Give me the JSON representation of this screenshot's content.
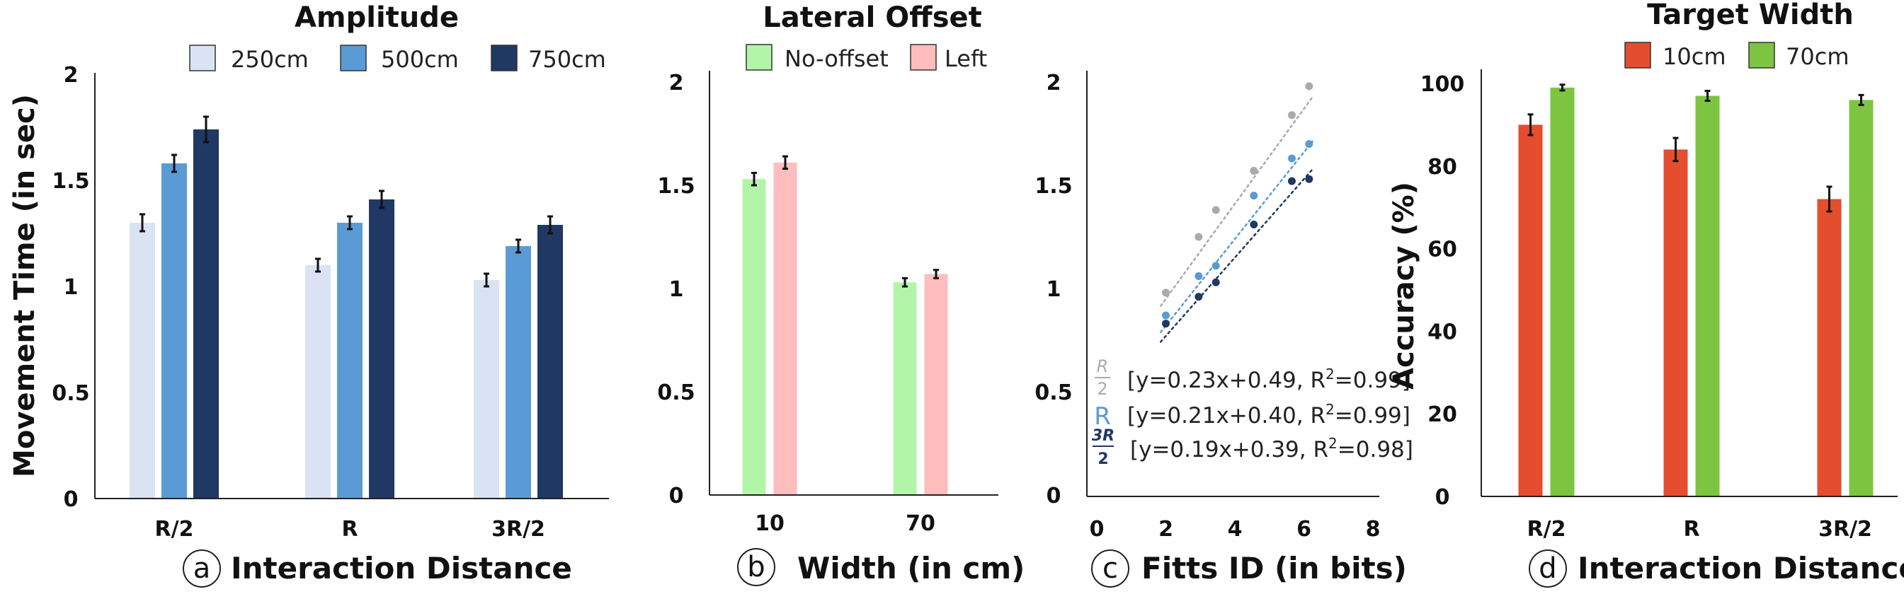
{
  "colors": {
    "a": [
      "#dae3f3",
      "#5b9bd5",
      "#203864"
    ],
    "b": [
      "#b3f5a8",
      "#ffbdbd"
    ],
    "c": [
      "#aaaaaa",
      "#5b9bd5",
      "#203864"
    ],
    "d": [
      "#e44d2e",
      "#7dc540"
    ]
  },
  "chart_data": [
    {
      "id": "a",
      "type": "bar",
      "title": "Amplitude",
      "ylabel": "Movement Time (in sec)",
      "xlabel": "Interaction Distance",
      "panel_letter": "a",
      "ylim": [
        0,
        2
      ],
      "yticks": [
        "0",
        "0.5",
        "1",
        "1.5",
        "2"
      ],
      "categories": [
        "R/2",
        "R",
        "3R/2"
      ],
      "series": [
        {
          "name": "250cm",
          "values": [
            1.3,
            1.1,
            1.03
          ],
          "errors": [
            0.04,
            0.03,
            0.03
          ]
        },
        {
          "name": "500cm",
          "values": [
            1.58,
            1.3,
            1.19
          ],
          "errors": [
            0.04,
            0.03,
            0.03
          ]
        },
        {
          "name": "750cm",
          "values": [
            1.74,
            1.41,
            1.29
          ],
          "errors": [
            0.06,
            0.04,
            0.04
          ]
        }
      ]
    },
    {
      "id": "b",
      "type": "bar",
      "title": "Lateral Offset",
      "xlabel": "Width (in cm)",
      "panel_letter": "b",
      "ylim": [
        0,
        2
      ],
      "yticks": [
        "0",
        "0.5",
        "1",
        "1.5",
        "2"
      ],
      "categories": [
        "10",
        "70"
      ],
      "series": [
        {
          "name": "No-offset",
          "values": [
            1.53,
            1.03
          ],
          "errors": [
            0.03,
            0.02
          ]
        },
        {
          "name": "Left",
          "values": [
            1.61,
            1.07
          ],
          "errors": [
            0.03,
            0.02
          ]
        }
      ]
    },
    {
      "id": "c",
      "type": "scatter",
      "xlabel": "Fitts ID (in bits)",
      "panel_letter": "c",
      "xlim": [
        0,
        8
      ],
      "ylim": [
        0,
        2
      ],
      "xticks": [
        "0",
        "2",
        "4",
        "6",
        "8"
      ],
      "yticks": [
        "0",
        "0.5",
        "1",
        "1.5",
        "2"
      ],
      "series": [
        {
          "name": "R/2",
          "label_num": "R",
          "label_den": "2",
          "x": [
            2.0,
            2.95,
            3.45,
            4.55,
            5.65,
            6.15
          ],
          "y": [
            0.98,
            1.25,
            1.38,
            1.57,
            1.84,
            1.98
          ],
          "annotation": "[y=0.23x+0.49, R",
          "annotation_sup": "2",
          "annotation_end": "=0.99]"
        },
        {
          "name": "R",
          "label_main": "R",
          "x": [
            2.0,
            2.95,
            3.45,
            4.55,
            5.65,
            6.15
          ],
          "y": [
            0.87,
            1.06,
            1.11,
            1.45,
            1.63,
            1.7
          ],
          "annotation": "[y=0.21x+0.40, R",
          "annotation_sup": "2",
          "annotation_end": "=0.99]"
        },
        {
          "name": "3R/2",
          "label_num": "3R",
          "label_den": "2",
          "x": [
            2.0,
            2.95,
            3.45,
            4.55,
            5.65,
            6.15
          ],
          "y": [
            0.83,
            0.96,
            1.03,
            1.31,
            1.52,
            1.53
          ],
          "annotation": "[y=0.19x+0.39, R",
          "annotation_sup": "2",
          "annotation_end": "=0.98]"
        }
      ],
      "fit_lines": [
        {
          "slope": 0.23,
          "intercept": 0.49
        },
        {
          "slope": 0.21,
          "intercept": 0.4
        },
        {
          "slope": 0.19,
          "intercept": 0.39
        }
      ]
    },
    {
      "id": "d",
      "type": "bar",
      "title": "Target Width",
      "ylabel": "Accuracy (%)",
      "xlabel": "Interaction Distance",
      "panel_letter": "d",
      "ylim": [
        0,
        100
      ],
      "yticks": [
        "0",
        "20",
        "40",
        "60",
        "80",
        "100"
      ],
      "categories": [
        "R/2",
        "R",
        "3R/2"
      ],
      "series": [
        {
          "name": "10cm",
          "values": [
            90,
            84,
            72
          ],
          "errors": [
            2.5,
            2.8,
            3.0
          ]
        },
        {
          "name": "70cm",
          "values": [
            99,
            97,
            96
          ],
          "errors": [
            0.7,
            1.2,
            1.2
          ]
        }
      ]
    }
  ]
}
